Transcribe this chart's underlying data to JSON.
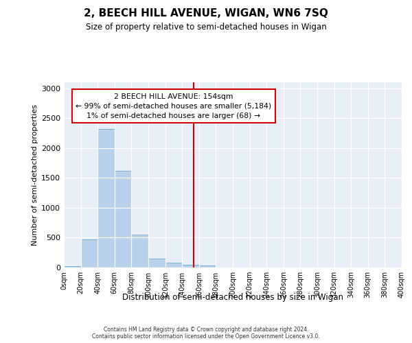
{
  "title": "2, BEECH HILL AVENUE, WIGAN, WN6 7SQ",
  "subtitle": "Size of property relative to semi-detached houses in Wigan",
  "xlabel": "Distribution of semi-detached houses by size in Wigan",
  "ylabel": "Number of semi-detached properties",
  "bar_edges": [
    0,
    20,
    40,
    60,
    80,
    100,
    120,
    140,
    160,
    180,
    200,
    220,
    240,
    260,
    280,
    300,
    320,
    340,
    360,
    380,
    400
  ],
  "bar_values": [
    25,
    475,
    2320,
    1620,
    550,
    155,
    85,
    50,
    30,
    0,
    0,
    0,
    0,
    0,
    0,
    0,
    0,
    0,
    0,
    0
  ],
  "bar_color": "#b8d0ea",
  "bar_edge_color": "#6aaad4",
  "property_size": 154,
  "vline_color": "#cc0000",
  "annotation_line1": "2 BEECH HILL AVENUE: 154sqm",
  "annotation_line2": "← 99% of semi-detached houses are smaller (5,184)",
  "annotation_line3": "1% of semi-detached houses are larger (68) →",
  "annotation_box_color": "#ffffff",
  "annotation_box_edgecolor": "#cc0000",
  "ylim": [
    0,
    3100
  ],
  "yticks": [
    0,
    500,
    1000,
    1500,
    2000,
    2500,
    3000
  ],
  "xlim": [
    0,
    400
  ],
  "bg_color": "#e8eef8",
  "grid_color": "#ffffff",
  "footer_line1": "Contains HM Land Registry data © Crown copyright and database right 2024.",
  "footer_line2": "Contains public sector information licensed under the Open Government Licence v3.0."
}
